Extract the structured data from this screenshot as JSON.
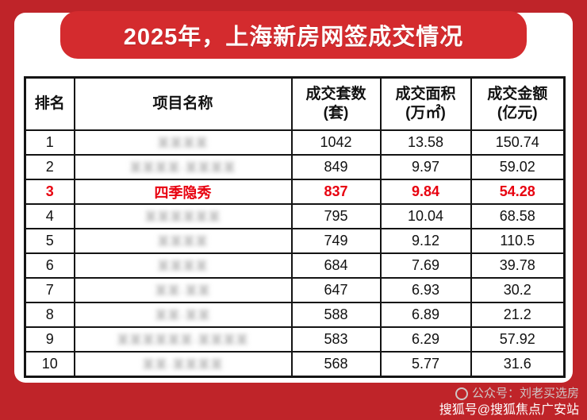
{
  "colors": {
    "background": "#bf2429",
    "banner": "#d42b2e",
    "highlight": "#e8000f",
    "table_border": "#141414"
  },
  "banner": {
    "title": "2025年，上海新房网签成交情况"
  },
  "table": {
    "headers": [
      {
        "line1": "排名"
      },
      {
        "line1": "项目名称"
      },
      {
        "line1": "成交套数",
        "line2": "(套)"
      },
      {
        "line1": "成交面积",
        "line2": "(万㎡)"
      },
      {
        "line1": "成交金额",
        "line2": "(亿元)"
      }
    ],
    "rows": [
      {
        "rank": "1",
        "name_placeholder": "某某某某",
        "units": "1042",
        "area": "13.58",
        "amount": "150.74"
      },
      {
        "rank": "2",
        "name_placeholder": "某某某某·某某某某",
        "units": "849",
        "area": "9.97",
        "amount": "59.02"
      },
      {
        "rank": "3",
        "name": "四季隐秀",
        "units": "837",
        "area": "9.84",
        "amount": "54.28"
      },
      {
        "rank": "4",
        "name_placeholder": "某某某某某某",
        "units": "795",
        "area": "10.04",
        "amount": "68.58"
      },
      {
        "rank": "5",
        "name_placeholder": "某某某某",
        "units": "749",
        "area": "9.12",
        "amount": "110.5"
      },
      {
        "rank": "6",
        "name_placeholder": "某某某某",
        "units": "684",
        "area": "7.69",
        "amount": "39.78"
      },
      {
        "rank": "7",
        "name_placeholder": "某某·某某",
        "units": "647",
        "area": "6.93",
        "amount": "30.2"
      },
      {
        "rank": "8",
        "name_placeholder": "某某·某某",
        "units": "588",
        "area": "6.89",
        "amount": "21.2"
      },
      {
        "rank": "9",
        "name_placeholder": "某某某某某某·某某某某",
        "units": "583",
        "area": "6.29",
        "amount": "57.92"
      },
      {
        "rank": "10",
        "name_placeholder": "某某·某某某某",
        "units": "568",
        "area": "5.77",
        "amount": "31.6"
      }
    ]
  },
  "footer": {
    "wechat": "公众号：刘老买选房",
    "sohu": "搜狐号@搜狐焦点广安站"
  },
  "chart_data": {
    "type": "table",
    "title": "2025年，上海新房网签成交情况",
    "columns": [
      "排名",
      "项目名称",
      "成交套数(套)",
      "成交面积(万㎡)",
      "成交金额(亿元)"
    ],
    "rows": [
      [
        1,
        "(模糊不可读)",
        1042,
        13.58,
        150.74
      ],
      [
        2,
        "(模糊不可读)",
        849,
        9.97,
        59.02
      ],
      [
        3,
        "四季隐秀",
        837,
        9.84,
        54.28
      ],
      [
        4,
        "(模糊不可读)",
        795,
        10.04,
        68.58
      ],
      [
        5,
        "(模糊不可读)",
        749,
        9.12,
        110.5
      ],
      [
        6,
        "(模糊不可读)",
        684,
        7.69,
        39.78
      ],
      [
        7,
        "(模糊不可读)",
        647,
        6.93,
        30.2
      ],
      [
        8,
        "(模糊不可读)",
        588,
        6.89,
        21.2
      ],
      [
        9,
        "(模糊不可读)",
        583,
        6.29,
        57.92
      ],
      [
        10,
        "(模糊不可读)",
        568,
        5.77,
        31.6
      ]
    ],
    "highlighted_row_rank": 3,
    "highlight_color": "#e8000f"
  }
}
